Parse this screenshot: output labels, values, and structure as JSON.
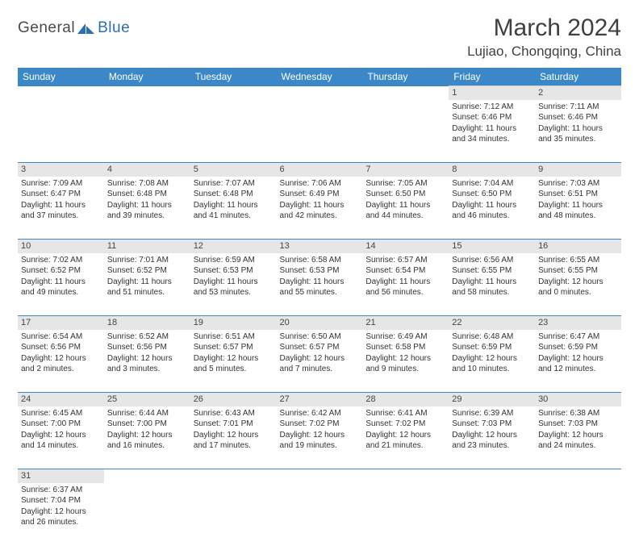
{
  "brand": {
    "part1": "General",
    "part2": "Blue"
  },
  "title": "March 2024",
  "location": "Lujiao, Chongqing, China",
  "colors": {
    "header_bg": "#3b87c8",
    "header_text": "#ffffff",
    "daynum_bg": "#e6e6e6",
    "row_divider": "#3b87c8",
    "logo_blue": "#2e6fb0",
    "text": "#333333"
  },
  "weekdays": [
    "Sunday",
    "Monday",
    "Tuesday",
    "Wednesday",
    "Thursday",
    "Friday",
    "Saturday"
  ],
  "weeks": [
    [
      null,
      null,
      null,
      null,
      null,
      {
        "n": "1",
        "sr": "7:12 AM",
        "ss": "6:46 PM",
        "dl": "11 hours and 34 minutes."
      },
      {
        "n": "2",
        "sr": "7:11 AM",
        "ss": "6:46 PM",
        "dl": "11 hours and 35 minutes."
      }
    ],
    [
      {
        "n": "3",
        "sr": "7:09 AM",
        "ss": "6:47 PM",
        "dl": "11 hours and 37 minutes."
      },
      {
        "n": "4",
        "sr": "7:08 AM",
        "ss": "6:48 PM",
        "dl": "11 hours and 39 minutes."
      },
      {
        "n": "5",
        "sr": "7:07 AM",
        "ss": "6:48 PM",
        "dl": "11 hours and 41 minutes."
      },
      {
        "n": "6",
        "sr": "7:06 AM",
        "ss": "6:49 PM",
        "dl": "11 hours and 42 minutes."
      },
      {
        "n": "7",
        "sr": "7:05 AM",
        "ss": "6:50 PM",
        "dl": "11 hours and 44 minutes."
      },
      {
        "n": "8",
        "sr": "7:04 AM",
        "ss": "6:50 PM",
        "dl": "11 hours and 46 minutes."
      },
      {
        "n": "9",
        "sr": "7:03 AM",
        "ss": "6:51 PM",
        "dl": "11 hours and 48 minutes."
      }
    ],
    [
      {
        "n": "10",
        "sr": "7:02 AM",
        "ss": "6:52 PM",
        "dl": "11 hours and 49 minutes."
      },
      {
        "n": "11",
        "sr": "7:01 AM",
        "ss": "6:52 PM",
        "dl": "11 hours and 51 minutes."
      },
      {
        "n": "12",
        "sr": "6:59 AM",
        "ss": "6:53 PM",
        "dl": "11 hours and 53 minutes."
      },
      {
        "n": "13",
        "sr": "6:58 AM",
        "ss": "6:53 PM",
        "dl": "11 hours and 55 minutes."
      },
      {
        "n": "14",
        "sr": "6:57 AM",
        "ss": "6:54 PM",
        "dl": "11 hours and 56 minutes."
      },
      {
        "n": "15",
        "sr": "6:56 AM",
        "ss": "6:55 PM",
        "dl": "11 hours and 58 minutes."
      },
      {
        "n": "16",
        "sr": "6:55 AM",
        "ss": "6:55 PM",
        "dl": "12 hours and 0 minutes."
      }
    ],
    [
      {
        "n": "17",
        "sr": "6:54 AM",
        "ss": "6:56 PM",
        "dl": "12 hours and 2 minutes."
      },
      {
        "n": "18",
        "sr": "6:52 AM",
        "ss": "6:56 PM",
        "dl": "12 hours and 3 minutes."
      },
      {
        "n": "19",
        "sr": "6:51 AM",
        "ss": "6:57 PM",
        "dl": "12 hours and 5 minutes."
      },
      {
        "n": "20",
        "sr": "6:50 AM",
        "ss": "6:57 PM",
        "dl": "12 hours and 7 minutes."
      },
      {
        "n": "21",
        "sr": "6:49 AM",
        "ss": "6:58 PM",
        "dl": "12 hours and 9 minutes."
      },
      {
        "n": "22",
        "sr": "6:48 AM",
        "ss": "6:59 PM",
        "dl": "12 hours and 10 minutes."
      },
      {
        "n": "23",
        "sr": "6:47 AM",
        "ss": "6:59 PM",
        "dl": "12 hours and 12 minutes."
      }
    ],
    [
      {
        "n": "24",
        "sr": "6:45 AM",
        "ss": "7:00 PM",
        "dl": "12 hours and 14 minutes."
      },
      {
        "n": "25",
        "sr": "6:44 AM",
        "ss": "7:00 PM",
        "dl": "12 hours and 16 minutes."
      },
      {
        "n": "26",
        "sr": "6:43 AM",
        "ss": "7:01 PM",
        "dl": "12 hours and 17 minutes."
      },
      {
        "n": "27",
        "sr": "6:42 AM",
        "ss": "7:02 PM",
        "dl": "12 hours and 19 minutes."
      },
      {
        "n": "28",
        "sr": "6:41 AM",
        "ss": "7:02 PM",
        "dl": "12 hours and 21 minutes."
      },
      {
        "n": "29",
        "sr": "6:39 AM",
        "ss": "7:03 PM",
        "dl": "12 hours and 23 minutes."
      },
      {
        "n": "30",
        "sr": "6:38 AM",
        "ss": "7:03 PM",
        "dl": "12 hours and 24 minutes."
      }
    ],
    [
      {
        "n": "31",
        "sr": "6:37 AM",
        "ss": "7:04 PM",
        "dl": "12 hours and 26 minutes."
      },
      null,
      null,
      null,
      null,
      null,
      null
    ]
  ],
  "labels": {
    "sunrise": "Sunrise:",
    "sunset": "Sunset:",
    "daylight": "Daylight:"
  }
}
